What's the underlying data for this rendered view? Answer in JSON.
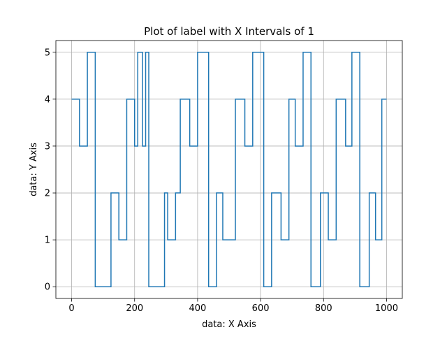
{
  "chart_data": {
    "type": "line",
    "drawstyle": "steps-post",
    "title": "Plot of label with X Intervals of 1",
    "xlabel": "data: X Axis",
    "ylabel": "data: Y Axis",
    "xlim": [
      -50,
      1050
    ],
    "ylim": [
      -0.25,
      5.25
    ],
    "xticks": [
      0,
      200,
      400,
      600,
      800,
      1000
    ],
    "yticks": [
      0,
      1,
      2,
      3,
      4,
      5
    ],
    "grid": true,
    "line_color": "#1f77b4",
    "series": [
      {
        "x": [
          0,
          25,
          50,
          75,
          125,
          150,
          175,
          200,
          210,
          225,
          235,
          245,
          295,
          305,
          330,
          345,
          375,
          400,
          435,
          460,
          480,
          520,
          550,
          575,
          610,
          635,
          665,
          690,
          710,
          735,
          760,
          790,
          815,
          840,
          870,
          890,
          915,
          945,
          965,
          985,
          1000
        ],
        "y": [
          4,
          3,
          5,
          0,
          2,
          1,
          4,
          3,
          5,
          3,
          5,
          0,
          2,
          1,
          2,
          4,
          3,
          5,
          0,
          2,
          1,
          4,
          3,
          5,
          0,
          2,
          1,
          4,
          3,
          5,
          0,
          2,
          1,
          4,
          3,
          5,
          0,
          2,
          1,
          4,
          4
        ]
      }
    ]
  }
}
